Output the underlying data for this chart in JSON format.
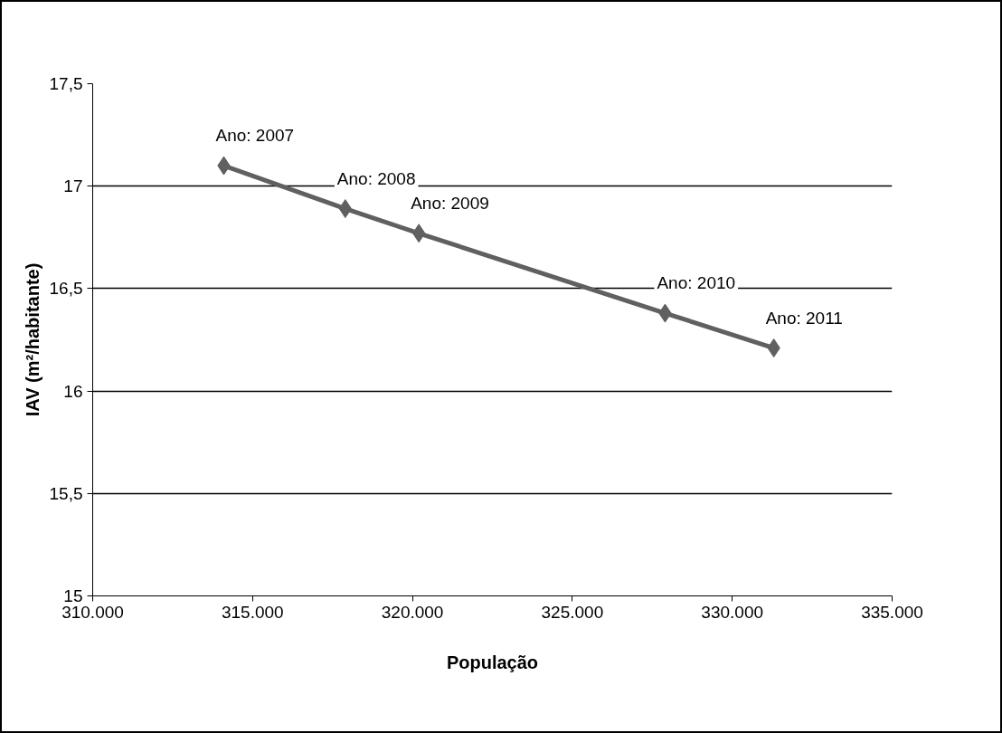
{
  "chart_data": {
    "type": "line",
    "xlabel": "População",
    "ylabel": "IAV (m²/habitante)",
    "x": [
      314100,
      317900,
      320200,
      327900,
      331300
    ],
    "series": [
      {
        "color": "#606060",
        "values": [
          17.1,
          16.89,
          16.77,
          16.38,
          16.21
        ]
      }
    ],
    "xlim": [
      310000,
      335000
    ],
    "xticks": [
      {
        "value": 310000,
        "label": "310.000"
      },
      {
        "value": 315000,
        "label": "315.000"
      },
      {
        "value": 320000,
        "label": "320.000"
      },
      {
        "value": 325000,
        "label": "325.000"
      },
      {
        "value": 330000,
        "label": "330.000"
      },
      {
        "value": 335000,
        "label": "335.000"
      }
    ],
    "ylim": [
      15,
      17.5
    ],
    "yticks": [
      15,
      {
        "value": 15.5,
        "label": "15,5"
      },
      16,
      {
        "value": 16.5,
        "label": "16,5"
      },
      17,
      {
        "value": 17.5,
        "label": "17,5"
      }
    ],
    "grid": "y",
    "marker": "diamond",
    "line_style": "solid",
    "annotations": [
      {
        "text": "Ano: 2007",
        "x": 314100,
        "y": 17.1
      },
      {
        "text": "Ano: 2008",
        "x": 317900,
        "y": 16.89
      },
      {
        "text": "Ano: 2009",
        "x": 320200,
        "y": 16.77
      },
      {
        "text": "Ano: 2010",
        "x": 327900,
        "y": 16.38
      },
      {
        "text": "Ano: 2011",
        "x": 331300,
        "y": 16.21
      }
    ]
  }
}
